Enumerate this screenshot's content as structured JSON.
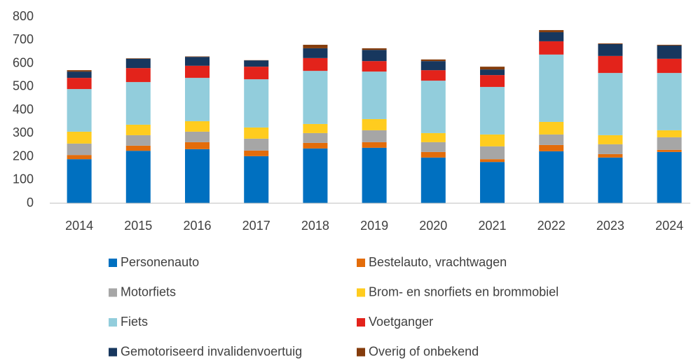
{
  "chart_data": {
    "type": "stacked_bar",
    "categories": [
      "2014",
      "2015",
      "2016",
      "2017",
      "2018",
      "2019",
      "2020",
      "2021",
      "2022",
      "2023",
      "2024"
    ],
    "series": [
      {
        "name": "Personenauto",
        "color": "#0070c0",
        "values": [
          189,
          225,
          232,
          202,
          235,
          238,
          196,
          177,
          223,
          196,
          220
        ]
      },
      {
        "name": "Bestelauto, vrachtwagen",
        "color": "#e36c0a",
        "values": [
          18,
          22,
          30,
          24,
          24,
          24,
          24,
          12,
          27,
          15,
          9
        ]
      },
      {
        "name": "Motorfiets",
        "color": "#a6a6a6",
        "values": [
          49,
          45,
          45,
          51,
          42,
          51,
          42,
          55,
          45,
          42,
          54
        ]
      },
      {
        "name": "Brom- en snorfiets en brommobiel",
        "color": "#ffcc1f",
        "values": [
          51,
          45,
          45,
          48,
          39,
          48,
          39,
          51,
          54,
          39,
          30
        ]
      },
      {
        "name": "Fiets",
        "color": "#92cddc",
        "values": [
          183,
          183,
          186,
          207,
          228,
          204,
          225,
          204,
          289,
          267,
          246
        ]
      },
      {
        "name": "Voetganger",
        "color": "#e3231b",
        "values": [
          48,
          60,
          52,
          54,
          55,
          45,
          45,
          51,
          57,
          73,
          61
        ]
      },
      {
        "name": "Gemotoriseerd invalidenvoertuig",
        "color": "#17375e",
        "values": [
          27,
          40,
          38,
          27,
          42,
          48,
          39,
          24,
          39,
          51,
          57
        ]
      },
      {
        "name": "Overig of onbekend",
        "color": "#843c0c",
        "values": [
          6,
          2,
          2,
          1,
          15,
          7,
          7,
          12,
          9,
          3,
          3
        ]
      }
    ],
    "ylim": [
      0,
      800
    ],
    "yticks": [
      0,
      100,
      200,
      300,
      400,
      500,
      600,
      700,
      800
    ],
    "grid": false
  }
}
